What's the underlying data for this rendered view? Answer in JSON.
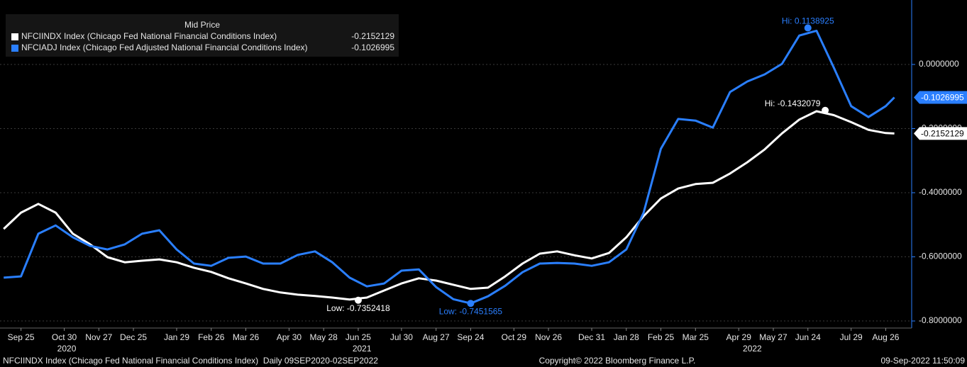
{
  "chart_data": {
    "type": "line",
    "legend_title": "Mid Price",
    "x": [
      "2020-09-11",
      "2020-09-25",
      "2020-10-09",
      "2020-10-23",
      "2020-11-06",
      "2020-11-20",
      "2020-12-04",
      "2020-12-18",
      "2021-01-01",
      "2021-01-15",
      "2021-01-29",
      "2021-02-12",
      "2021-02-26",
      "2021-03-12",
      "2021-03-26",
      "2021-04-09",
      "2021-04-23",
      "2021-05-07",
      "2021-05-21",
      "2021-06-04",
      "2021-06-18",
      "2021-07-02",
      "2021-07-16",
      "2021-07-30",
      "2021-08-13",
      "2021-08-27",
      "2021-09-10",
      "2021-09-24",
      "2021-10-08",
      "2021-10-22",
      "2021-11-05",
      "2021-11-19",
      "2021-12-03",
      "2021-12-17",
      "2021-12-31",
      "2022-01-14",
      "2022-01-28",
      "2022-02-11",
      "2022-02-25",
      "2022-03-11",
      "2022-03-25",
      "2022-04-08",
      "2022-04-22",
      "2022-05-06",
      "2022-05-20",
      "2022-06-03",
      "2022-06-17",
      "2022-07-01",
      "2022-07-15",
      "2022-07-29",
      "2022-08-12",
      "2022-08-26",
      "2022-09-02"
    ],
    "series": [
      {
        "name": "NFCIINDX Index (Chicago Fed National Financial Conditions Index)",
        "color": "#ffffff",
        "values": [
          -0.513,
          -0.462,
          -0.435,
          -0.462,
          -0.528,
          -0.561,
          -0.601,
          -0.617,
          -0.612,
          -0.608,
          -0.617,
          -0.634,
          -0.647,
          -0.667,
          -0.683,
          -0.7,
          -0.711,
          -0.718,
          -0.722,
          -0.727,
          -0.733,
          -0.727,
          -0.705,
          -0.683,
          -0.667,
          -0.674,
          -0.687,
          -0.7,
          -0.696,
          -0.661,
          -0.621,
          -0.59,
          -0.583,
          -0.595,
          -0.605,
          -0.588,
          -0.539,
          -0.473,
          -0.418,
          -0.387,
          -0.373,
          -0.369,
          -0.34,
          -0.305,
          -0.265,
          -0.215,
          -0.172,
          -0.146,
          -0.158,
          -0.18,
          -0.204,
          -0.214,
          -0.2152129
        ]
      },
      {
        "name": "NFCIADJ Index (Chicago Fed Adjusted National Financial Conditions Index)",
        "color": "#2a7fff",
        "values": [
          -0.665,
          -0.661,
          -0.528,
          -0.502,
          -0.539,
          -0.566,
          -0.577,
          -0.561,
          -0.528,
          -0.517,
          -0.577,
          -0.621,
          -0.628,
          -0.603,
          -0.599,
          -0.621,
          -0.621,
          -0.594,
          -0.583,
          -0.617,
          -0.665,
          -0.692,
          -0.683,
          -0.643,
          -0.639,
          -0.694,
          -0.732,
          -0.745,
          -0.723,
          -0.69,
          -0.648,
          -0.621,
          -0.619,
          -0.621,
          -0.628,
          -0.617,
          -0.577,
          -0.462,
          -0.263,
          -0.17,
          -0.175,
          -0.197,
          -0.086,
          -0.053,
          -0.031,
          0.002,
          0.09,
          0.105,
          -0.01,
          -0.13,
          -0.164,
          -0.13,
          -0.1026995
        ]
      }
    ],
    "xlim": [
      "2020-09-08",
      "2022-09-16"
    ],
    "xticks": [
      {
        "value": "2020-09-25",
        "label": "Sep 25"
      },
      {
        "value": "2020-10-30",
        "label": "Oct 30"
      },
      {
        "value": "2020-11-27",
        "label": "Nov 27"
      },
      {
        "value": "2020-12-25",
        "label": "Dec 25"
      },
      {
        "value": "2021-01-29",
        "label": "Jan 29"
      },
      {
        "value": "2021-02-26",
        "label": "Feb 26"
      },
      {
        "value": "2021-03-26",
        "label": "Mar 26"
      },
      {
        "value": "2021-04-30",
        "label": "Apr 30"
      },
      {
        "value": "2021-05-28",
        "label": "May 28"
      },
      {
        "value": "2021-06-25",
        "label": "Jun 25"
      },
      {
        "value": "2021-07-30",
        "label": "Jul 30"
      },
      {
        "value": "2021-08-27",
        "label": "Aug 27"
      },
      {
        "value": "2021-09-24",
        "label": "Sep 24"
      },
      {
        "value": "2021-10-29",
        "label": "Oct 29"
      },
      {
        "value": "2021-11-26",
        "label": "Nov 26"
      },
      {
        "value": "2021-12-31",
        "label": "Dec 31"
      },
      {
        "value": "2022-01-28",
        "label": "Jan 28"
      },
      {
        "value": "2022-02-25",
        "label": "Feb 25"
      },
      {
        "value": "2022-03-25",
        "label": "Mar 25"
      },
      {
        "value": "2022-04-29",
        "label": "Apr 29"
      },
      {
        "value": "2022-05-27",
        "label": "May 27"
      },
      {
        "value": "2022-06-24",
        "label": "Jun 24"
      },
      {
        "value": "2022-07-29",
        "label": "Jul 29"
      },
      {
        "value": "2022-08-26",
        "label": "Aug 26"
      }
    ],
    "year_labels": [
      {
        "value": "2020-11-01",
        "label": "2020"
      },
      {
        "value": "2021-06-28",
        "label": "2021"
      },
      {
        "value": "2022-05-10",
        "label": "2022"
      }
    ],
    "ylim": [
      -0.822,
      0.201
    ],
    "yticks": [
      {
        "value": 0,
        "label": "0.0000000"
      },
      {
        "value": -0.2,
        "label": "-0.2000000"
      },
      {
        "value": -0.4,
        "label": "-0.4000000"
      },
      {
        "value": -0.6,
        "label": "-0.6000000"
      },
      {
        "value": -0.8,
        "label": "-0.8000000"
      }
    ],
    "grid": true,
    "annotations": [
      {
        "label": "Low: -0.7352418",
        "x": "2021-06-25",
        "value": -0.7352418,
        "color": "#ffffff"
      },
      {
        "label": "Low: -0.7451565",
        "x": "2021-09-24",
        "value": -0.7451565,
        "color": "#2a7fff"
      },
      {
        "label": "Hi: 0.1138925",
        "x": "2022-06-24",
        "value": 0.1138925,
        "color": "#2a7fff"
      },
      {
        "label": "Hi: -0.1432079",
        "x": "2022-07-08",
        "value": -0.1432079,
        "color": "#ffffff"
      }
    ],
    "footer_left": "NFCIINDX Index (Chicago Fed National Financial Conditions Index)  Daily 09SEP2020-02SEP2022",
    "footer_center": "Copyright© 2022 Bloomberg Finance L.P.",
    "footer_right": "09-Sep-2022 11:50:09"
  }
}
